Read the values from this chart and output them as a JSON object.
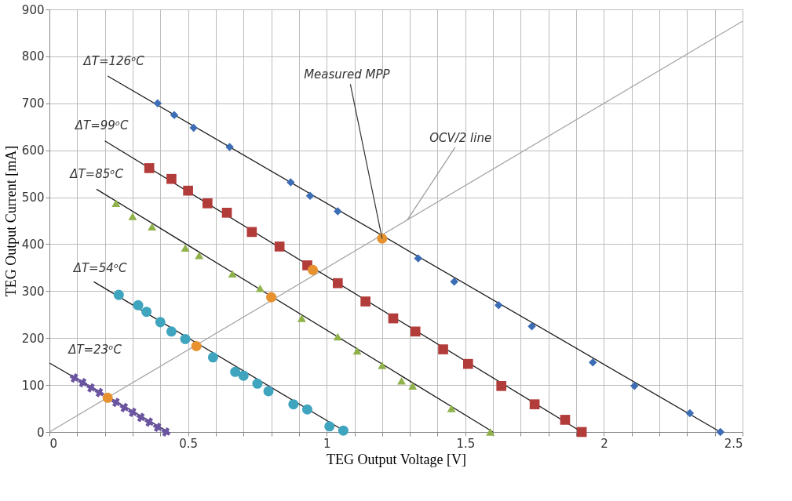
{
  "chart_data": {
    "type": "scatter",
    "xlabel": "TEG Output Voltage [V]",
    "ylabel": "TEG Output Current [mA]",
    "xlim": [
      0,
      2.5
    ],
    "ylim": [
      0,
      900
    ],
    "xticks": [
      0,
      {
        "value": 0.1,
        "label": null
      },
      {
        "value": 0.2,
        "label": null
      },
      {
        "value": 0.3,
        "label": null
      },
      {
        "value": 0.4,
        "label": null
      },
      0.5,
      {
        "value": 0.6,
        "label": null
      },
      {
        "value": 0.7,
        "label": null
      },
      {
        "value": 0.8,
        "label": null
      },
      {
        "value": 0.9,
        "label": null
      },
      1,
      {
        "value": 1.1,
        "label": null
      },
      {
        "value": 1.2,
        "label": null
      },
      {
        "value": 1.3,
        "label": null
      },
      {
        "value": 1.4,
        "label": null
      },
      1.5,
      {
        "value": 1.6,
        "label": null
      },
      {
        "value": 1.7,
        "label": null
      },
      {
        "value": 1.8,
        "label": null
      },
      {
        "value": 1.9,
        "label": null
      },
      2,
      {
        "value": 2.1,
        "label": null
      },
      {
        "value": 2.2,
        "label": null
      },
      {
        "value": 2.3,
        "label": null
      },
      {
        "value": 2.4,
        "label": null
      },
      2.5
    ],
    "yticks": [
      0,
      100,
      200,
      300,
      400,
      500,
      600,
      700,
      800,
      900
    ],
    "grid": true,
    "series": [
      {
        "type": "line",
        "color": "#a6a6a6",
        "line_style": "solid",
        "x": [
          0,
          2.5
        ],
        "values": [
          0,
          875
        ]
      },
      {
        "type": "line",
        "color": "#1a1a1a",
        "line_style": "solid",
        "x": [
          0.21,
          2.42
        ],
        "values": [
          758,
          0
        ]
      },
      {
        "type": "line",
        "color": "#1a1a1a",
        "line_style": "solid",
        "x": [
          0.2,
          1.92
        ],
        "values": [
          620,
          0
        ]
      },
      {
        "type": "line",
        "color": "#1a1a1a",
        "line_style": "solid",
        "x": [
          0.17,
          1.6
        ],
        "values": [
          517,
          0
        ]
      },
      {
        "type": "line",
        "color": "#1a1a1a",
        "line_style": "solid",
        "x": [
          0.16,
          1.07
        ],
        "values": [
          320,
          0
        ]
      },
      {
        "type": "line",
        "color": "#1a1a1a",
        "line_style": "solid",
        "x": [
          0,
          0.43
        ],
        "values": [
          147,
          0
        ]
      },
      {
        "marker": "diamond",
        "color": "#3d6db5",
        "x": [
          0.39,
          0.45,
          0.52,
          0.65,
          0.87,
          0.94,
          1.04,
          1.33,
          1.46,
          1.62,
          1.74,
          1.96,
          2.11,
          2.31,
          2.42
        ],
        "values": [
          700,
          675,
          648,
          607,
          532,
          503,
          470,
          370,
          320,
          270,
          225,
          148,
          98,
          40,
          0
        ]
      },
      {
        "marker": "square",
        "color": "#b23c3a",
        "x": [
          0.36,
          0.44,
          0.5,
          0.57,
          0.64,
          0.73,
          0.83,
          0.93,
          1.04,
          1.14,
          1.24,
          1.32,
          1.42,
          1.51,
          1.63,
          1.75,
          1.86,
          1.92
        ],
        "values": [
          562,
          539,
          514,
          487,
          467,
          426,
          395,
          355,
          317,
          278,
          242,
          214,
          176,
          145,
          98,
          59,
          26,
          0
        ]
      },
      {
        "marker": "triangle",
        "color": "#8fb24a",
        "x": [
          0.24,
          0.3,
          0.37,
          0.49,
          0.54,
          0.66,
          0.76,
          0.91,
          1.04,
          1.11,
          1.2,
          1.27,
          1.31,
          1.45,
          1.59
        ],
        "values": [
          487,
          459,
          437,
          392,
          376,
          337,
          306,
          242,
          203,
          173,
          142,
          109,
          98,
          50,
          0
        ]
      },
      {
        "marker": "circle",
        "color": "#3fa5bf",
        "x": [
          0.25,
          0.32,
          0.35,
          0.4,
          0.44,
          0.49,
          0.59,
          0.67,
          0.7,
          0.75,
          0.79,
          0.88,
          0.93,
          1.01,
          1.06
        ],
        "values": [
          292,
          270,
          256,
          234,
          214,
          198,
          159,
          128,
          120,
          103,
          87,
          59,
          48,
          12,
          3
        ]
      },
      {
        "marker": "cross",
        "color": "#6b55a0",
        "x": [
          0.09,
          0.12,
          0.15,
          0.18,
          0.24,
          0.27,
          0.3,
          0.33,
          0.36,
          0.39,
          0.42
        ],
        "values": [
          115,
          105,
          94,
          84,
          63,
          52,
          42,
          31,
          21,
          10,
          0
        ]
      },
      {
        "marker": "circle",
        "color": "#e8922f",
        "x": [
          0.21,
          0.53,
          0.8,
          0.95,
          1.2
        ],
        "values": [
          73,
          183,
          287,
          345,
          412
        ]
      }
    ],
    "annotations": [
      {
        "text": "ΔT=126ᵒC",
        "x": 0.21,
        "y": 758
      },
      {
        "text": "ΔT=99ᵒC",
        "x": 0.2,
        "y": 620
      },
      {
        "text": "ΔT=85ᵒC",
        "x": 0.17,
        "y": 517
      },
      {
        "text": "ΔT=54ᵒC",
        "x": 0.16,
        "y": 320
      },
      {
        "text": "ΔT=23ᵒC",
        "x": 0,
        "y": 147
      },
      {
        "text": "Measured MPP",
        "x": 1.2,
        "y": 412
      },
      {
        "text": "OCV/2 line",
        "x": 1.29,
        "y": 451
      }
    ]
  }
}
